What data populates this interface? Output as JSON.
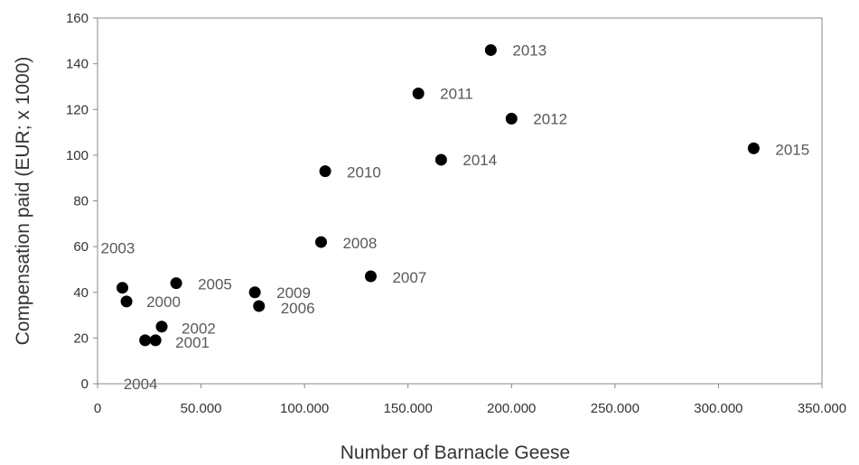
{
  "chart_data": {
    "type": "scatter",
    "title": "",
    "xlabel": "Number of Barnacle Geese",
    "ylabel": "Compensation paid (EUR; x 1000)",
    "xlim": [
      0,
      350000
    ],
    "ylim": [
      0,
      160
    ],
    "x_ticks": [
      {
        "value": 0,
        "label": "0"
      },
      {
        "value": 50000,
        "label": "50.000"
      },
      {
        "value": 100000,
        "label": "100.000"
      },
      {
        "value": 150000,
        "label": "150.000"
      },
      {
        "value": 200000,
        "label": "200.000"
      },
      {
        "value": 250000,
        "label": "250.000"
      },
      {
        "value": 300000,
        "label": "300.000"
      },
      {
        "value": 350000,
        "label": "350.000"
      }
    ],
    "y_ticks": [
      {
        "value": 0,
        "label": "0"
      },
      {
        "value": 20,
        "label": "20"
      },
      {
        "value": 40,
        "label": "40"
      },
      {
        "value": 60,
        "label": "60"
      },
      {
        "value": 80,
        "label": "80"
      },
      {
        "value": 100,
        "label": "100"
      },
      {
        "value": 120,
        "label": "120"
      },
      {
        "value": 140,
        "label": "140"
      },
      {
        "value": 160,
        "label": "160"
      }
    ],
    "grid": false,
    "legend": "none",
    "marker_color": "#000000",
    "points": [
      {
        "label": "2000",
        "x": 14000,
        "y": 36
      },
      {
        "label": "2001",
        "x": 28000,
        "y": 19
      },
      {
        "label": "2002",
        "x": 31000,
        "y": 25
      },
      {
        "label": "2003",
        "x": 12000,
        "y": 42
      },
      {
        "label": "2004",
        "x": 23000,
        "y": 19
      },
      {
        "label": "2005",
        "x": 38000,
        "y": 44
      },
      {
        "label": "2006",
        "x": 78000,
        "y": 34
      },
      {
        "label": "2007",
        "x": 132000,
        "y": 47
      },
      {
        "label": "2008",
        "x": 108000,
        "y": 62
      },
      {
        "label": "2009",
        "x": 76000,
        "y": 40
      },
      {
        "label": "2010",
        "x": 110000,
        "y": 93
      },
      {
        "label": "2011",
        "x": 155000,
        "y": 127
      },
      {
        "label": "2012",
        "x": 200000,
        "y": 116
      },
      {
        "label": "2013",
        "x": 190000,
        "y": 146
      },
      {
        "label": "2014",
        "x": 166000,
        "y": 98
      },
      {
        "label": "2015",
        "x": 317000,
        "y": 103
      }
    ]
  }
}
